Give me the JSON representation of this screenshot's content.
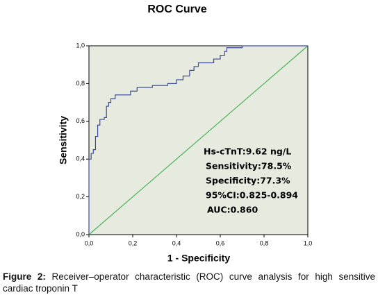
{
  "chart_data": {
    "type": "line",
    "title": "ROC Curve",
    "xlabel": "1 - Specificity",
    "ylabel": "Sensitivity",
    "xlim": [
      0,
      1
    ],
    "ylim": [
      0,
      1
    ],
    "xticks": [
      {
        "value": 0,
        "label": "0,0"
      },
      {
        "value": 0.2,
        "label": "0,2"
      },
      {
        "value": 0.4,
        "label": "0,4"
      },
      {
        "value": 0.6,
        "label": "0,6"
      },
      {
        "value": 0.8,
        "label": "0,8"
      },
      {
        "value": 1,
        "label": "1,0"
      }
    ],
    "yticks": [
      {
        "value": 0,
        "label": "0,0"
      },
      {
        "value": 0.2,
        "label": "0,2"
      },
      {
        "value": 0.4,
        "label": "0,4"
      },
      {
        "value": 0.6,
        "label": "0,6"
      },
      {
        "value": 0.8,
        "label": "0,8"
      },
      {
        "value": 1,
        "label": "1,0"
      }
    ],
    "background": "#e6eadf",
    "series": [
      {
        "color": "#3b4a9c",
        "x": [
          0,
          0,
          0.01,
          0.01,
          0.02,
          0.02,
          0.03,
          0.03,
          0.04,
          0.04,
          0.05,
          0.05,
          0.07,
          0.07,
          0.08,
          0.08,
          0.09,
          0.09,
          0.1,
          0.1,
          0.12,
          0.12,
          0.19,
          0.19,
          0.22,
          0.22,
          0.29,
          0.29,
          0.36,
          0.36,
          0.4,
          0.4,
          0.43,
          0.43,
          0.46,
          0.46,
          0.48,
          0.48,
          0.5,
          0.5,
          0.57,
          0.57,
          0.6,
          0.6,
          0.62,
          0.62,
          0.63,
          0.63,
          0.7,
          0.7,
          1.0
        ],
        "values": [
          0,
          0.4,
          0.4,
          0.43,
          0.43,
          0.45,
          0.45,
          0.52,
          0.52,
          0.58,
          0.58,
          0.61,
          0.61,
          0.62,
          0.62,
          0.68,
          0.68,
          0.7,
          0.7,
          0.72,
          0.72,
          0.74,
          0.74,
          0.76,
          0.76,
          0.78,
          0.78,
          0.79,
          0.79,
          0.8,
          0.8,
          0.82,
          0.82,
          0.84,
          0.84,
          0.87,
          0.87,
          0.89,
          0.89,
          0.91,
          0.91,
          0.93,
          0.93,
          0.95,
          0.95,
          0.97,
          0.97,
          0.99,
          0.99,
          1.0,
          1.0
        ]
      },
      {
        "color": "#4cb35a",
        "x": [
          0,
          1
        ],
        "values": [
          0,
          1
        ]
      }
    ],
    "annotations": [
      "Hs-cTnT:9.62 ng/L",
      "Sensitivity:78.5%",
      "Specificity:77.3%",
      "95%CI:0.825-0.894",
      "AUC:0.860"
    ]
  },
  "caption": {
    "label": "Figure 2:",
    "text": "Receiver–operator characteristic (ROC) curve analysis for high sensitive cardiac troponin T"
  }
}
